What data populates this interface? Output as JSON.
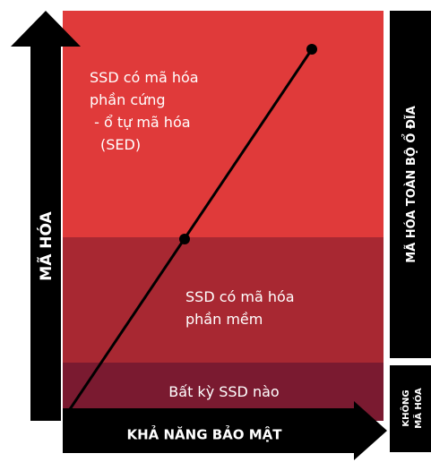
{
  "y_axis": {
    "label": "MÃ HÓA"
  },
  "x_axis": {
    "label": "KHẢ NĂNG BẢO MẬT"
  },
  "zones": [
    {
      "lines": [
        "SSD có mã hóa",
        "phần cứng",
        " - ổ tự mã hóa",
        "(SED)"
      ]
    },
    {
      "lines": [
        "SSD có mã hóa",
        "phần mềm"
      ]
    },
    {
      "lines": [
        "Bất kỳ SSD nào"
      ]
    }
  ],
  "side_labels": {
    "full_disk": "MÃ HÓA TOÀN BỘ Ổ ĐĨA",
    "none": [
      "KHÔNG",
      "MÃ HÓA"
    ]
  }
}
